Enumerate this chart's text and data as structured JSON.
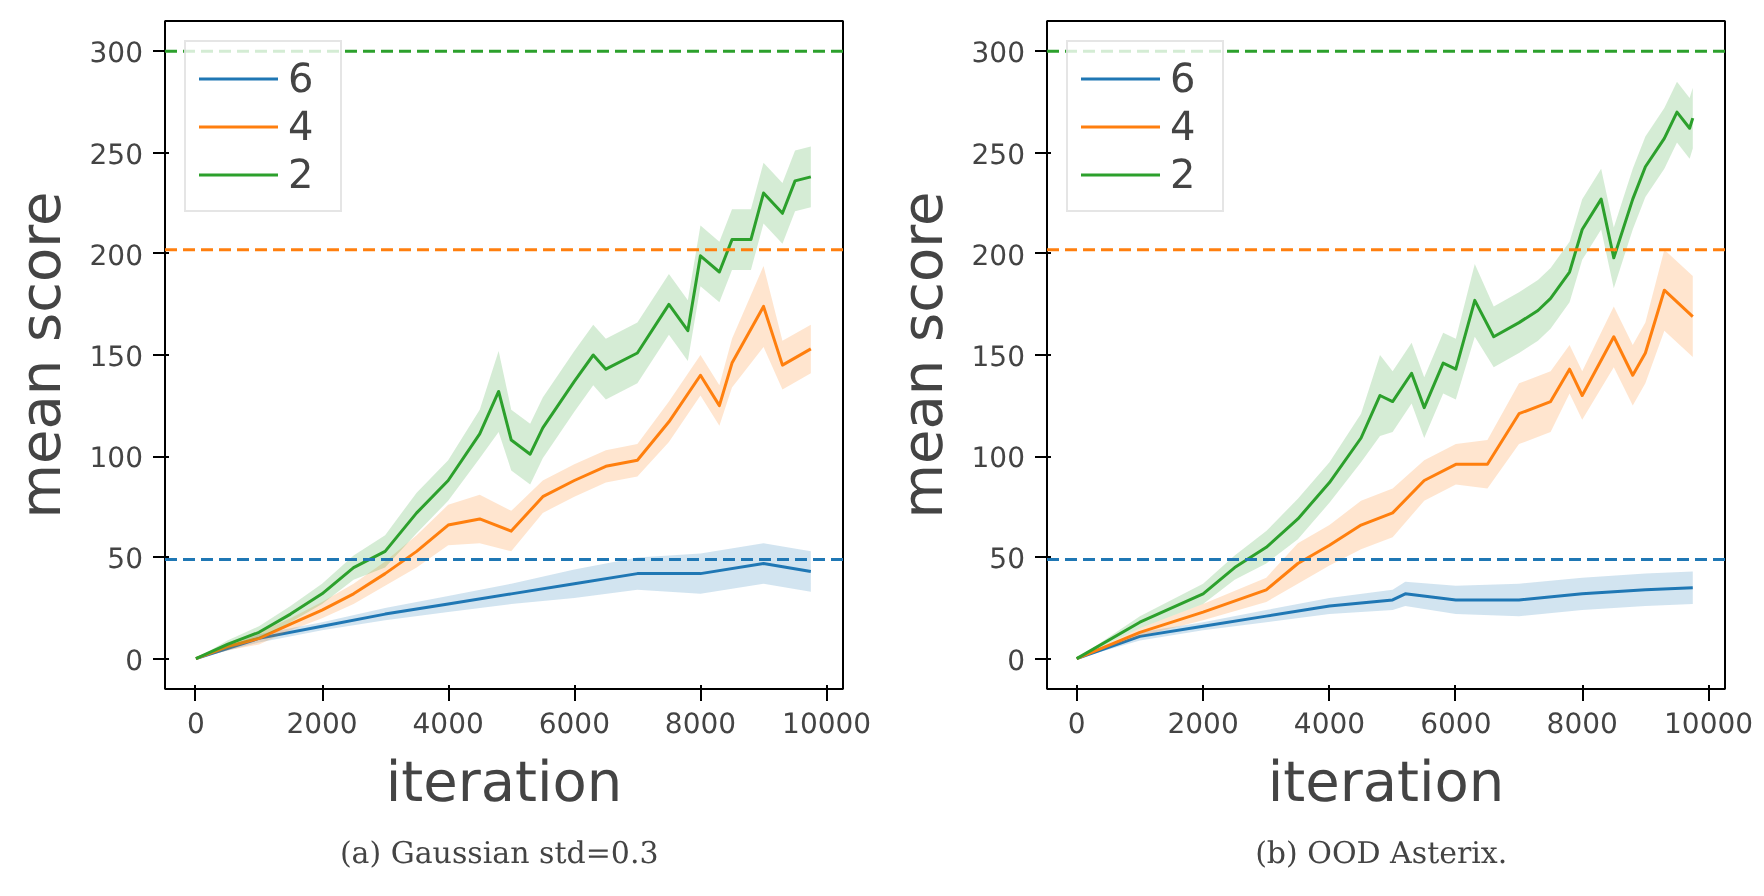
{
  "chart_data": [
    {
      "type": "line",
      "xlabel": "iteration",
      "ylabel": "mean score",
      "annotations": [
        "(a)  Gaussian std=0.3"
      ],
      "xlim": [
        -490,
        10260
      ],
      "ylim": [
        -15,
        315
      ],
      "xticks": [
        0,
        2000,
        4000,
        6000,
        8000,
        10000
      ],
      "yticks": [
        0,
        50,
        100,
        150,
        200,
        250,
        300
      ],
      "grid": false,
      "legend": "top left",
      "line_style": "solid",
      "series": [
        {
          "name": "6",
          "color": "#1f77b4",
          "x": [
            0,
            1000,
            2000,
            3000,
            4000,
            5000,
            6000,
            7000,
            8000,
            9000,
            9750
          ],
          "values": [
            0,
            10,
            16,
            22,
            27,
            32,
            37,
            42,
            42,
            47,
            43
          ],
          "lower": [
            0,
            8,
            14,
            19,
            23,
            27,
            30,
            34,
            32,
            37,
            33
          ],
          "upper": [
            0,
            12,
            18,
            25,
            31,
            37,
            44,
            50,
            52,
            57,
            53
          ]
        },
        {
          "name": "4",
          "color": "#ff7f0e",
          "x": [
            0,
            500,
            1000,
            1500,
            2000,
            2500,
            3000,
            3500,
            4000,
            4500,
            5000,
            5500,
            6000,
            6500,
            7000,
            7500,
            8000,
            8300,
            8500,
            9000,
            9300,
            9750
          ],
          "values": [
            0,
            6,
            10,
            17,
            24,
            32,
            42,
            53,
            66,
            69,
            63,
            80,
            88,
            95,
            98,
            117,
            140,
            125,
            146,
            174,
            145,
            153
          ],
          "lower": [
            0,
            4,
            7,
            14,
            20,
            27,
            36,
            45,
            56,
            57,
            53,
            72,
            80,
            87,
            90,
            107,
            130,
            115,
            134,
            154,
            133,
            141
          ],
          "upper": [
            0,
            8,
            13,
            20,
            28,
            37,
            48,
            61,
            76,
            81,
            73,
            88,
            96,
            103,
            106,
            127,
            150,
            135,
            158,
            194,
            157,
            165
          ]
        },
        {
          "name": "2",
          "color": "#2ca02c",
          "x": [
            0,
            500,
            1000,
            1500,
            2000,
            2500,
            3000,
            3500,
            4000,
            4500,
            4800,
            5000,
            5300,
            5500,
            6000,
            6300,
            6500,
            7000,
            7500,
            7800,
            8000,
            8300,
            8500,
            8800,
            9000,
            9300,
            9500,
            9750
          ],
          "values": [
            0,
            7,
            13,
            22,
            32,
            45,
            53,
            72,
            88,
            111,
            132,
            108,
            101,
            114,
            137,
            150,
            143,
            151,
            175,
            162,
            199,
            191,
            207,
            207,
            230,
            220,
            236,
            238
          ],
          "lower": [
            0,
            5,
            10,
            18,
            27,
            39,
            45,
            62,
            78,
            99,
            112,
            93,
            86,
            99,
            122,
            135,
            128,
            136,
            160,
            147,
            184,
            176,
            192,
            192,
            215,
            205,
            221,
            223
          ],
          "upper": [
            0,
            9,
            16,
            26,
            37,
            51,
            61,
            82,
            98,
            123,
            152,
            123,
            116,
            129,
            152,
            165,
            158,
            166,
            190,
            177,
            214,
            206,
            222,
            222,
            245,
            235,
            251,
            253
          ]
        }
      ],
      "ref_lines": [
        {
          "axis": "y",
          "value": 49,
          "label": null,
          "color": "#1f77b4",
          "line_style": "dashed"
        },
        {
          "axis": "y",
          "value": 202,
          "label": null,
          "color": "#ff7f0e",
          "line_style": "dashed"
        },
        {
          "axis": "y",
          "value": 300,
          "label": null,
          "color": "#2ca02c",
          "line_style": "dashed"
        }
      ]
    },
    {
      "type": "line",
      "xlabel": "iteration",
      "ylabel": "mean score",
      "annotations": [
        "(b)  OOD Asterix."
      ],
      "xlim": [
        -470,
        10260
      ],
      "ylim": [
        -15,
        315
      ],
      "xticks": [
        0,
        2000,
        4000,
        6000,
        8000,
        10000
      ],
      "yticks": [
        0,
        50,
        100,
        150,
        200,
        250,
        300
      ],
      "grid": false,
      "legend": "top left",
      "line_style": "solid",
      "series": [
        {
          "name": "6",
          "color": "#1f77b4",
          "x": [
            0,
            1000,
            2000,
            3000,
            4000,
            5000,
            5200,
            6000,
            7000,
            8000,
            9000,
            9750
          ],
          "values": [
            0,
            11,
            16,
            21,
            26,
            29,
            32,
            29,
            29,
            32,
            34,
            35
          ],
          "lower": [
            0,
            9,
            14,
            18,
            22,
            24,
            26,
            22,
            21,
            24,
            26,
            27
          ],
          "upper": [
            0,
            13,
            18,
            24,
            30,
            34,
            38,
            36,
            37,
            40,
            42,
            43
          ]
        },
        {
          "name": "4",
          "color": "#ff7f0e",
          "x": [
            0,
            1000,
            2000,
            3000,
            3500,
            4000,
            4500,
            5000,
            5500,
            6000,
            6500,
            7000,
            7500,
            7800,
            8000,
            8500,
            8800,
            9000,
            9300,
            9750
          ],
          "values": [
            0,
            13,
            23,
            34,
            47,
            56,
            66,
            72,
            88,
            96,
            96,
            121,
            127,
            143,
            130,
            159,
            140,
            151,
            182,
            169
          ],
          "lower": [
            0,
            11,
            19,
            28,
            37,
            46,
            54,
            60,
            78,
            86,
            84,
            106,
            112,
            131,
            118,
            144,
            125,
            136,
            162,
            149
          ],
          "upper": [
            0,
            15,
            27,
            40,
            57,
            66,
            78,
            84,
            98,
            106,
            108,
            136,
            142,
            155,
            142,
            174,
            155,
            166,
            202,
            189
          ]
        },
        {
          "name": "2",
          "color": "#2ca02c",
          "x": [
            0,
            1000,
            2000,
            2500,
            3000,
            3500,
            4000,
            4500,
            4800,
            5000,
            5300,
            5500,
            5800,
            6000,
            6300,
            6600,
            7000,
            7300,
            7500,
            7800,
            8000,
            8300,
            8500,
            8800,
            9000,
            9300,
            9500,
            9700,
            9750
          ],
          "values": [
            0,
            18,
            32,
            45,
            55,
            69,
            87,
            109,
            130,
            127,
            141,
            124,
            146,
            143,
            177,
            159,
            166,
            172,
            178,
            191,
            212,
            227,
            198,
            227,
            243,
            257,
            270,
            262,
            267
          ],
          "lower": [
            0,
            15,
            27,
            39,
            47,
            59,
            77,
            97,
            110,
            112,
            126,
            109,
            131,
            128,
            159,
            144,
            151,
            157,
            163,
            176,
            197,
            212,
            183,
            212,
            228,
            242,
            255,
            247,
            252
          ],
          "upper": [
            0,
            21,
            37,
            51,
            63,
            79,
            97,
            121,
            150,
            142,
            156,
            139,
            161,
            158,
            195,
            174,
            181,
            187,
            193,
            206,
            227,
            242,
            213,
            242,
            258,
            272,
            285,
            277,
            282
          ]
        }
      ],
      "ref_lines": [
        {
          "axis": "y",
          "value": 49,
          "label": null,
          "color": "#1f77b4",
          "line_style": "dashed"
        },
        {
          "axis": "y",
          "value": 202,
          "label": null,
          "color": "#ff7f0e",
          "line_style": "dashed"
        },
        {
          "axis": "y",
          "value": 300,
          "label": null,
          "color": "#2ca02c",
          "line_style": "dashed"
        }
      ]
    }
  ]
}
